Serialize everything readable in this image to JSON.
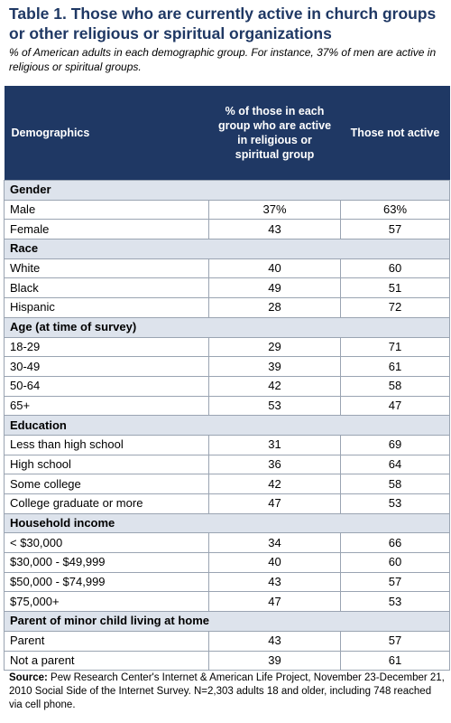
{
  "title": "Table 1. Those who are currently active in church groups or other religious or spiritual organizations",
  "subtitle": "% of American adults in each demographic group. For instance, 37% of men are active in religious or spiritual groups.",
  "chart_data": {
    "type": "table",
    "columns": [
      "Demographics",
      "% of those in each group who are active in religious or spiritual group",
      "Those not active"
    ],
    "sections": [
      {
        "name": "Gender",
        "rows": [
          {
            "label": "Male",
            "active": "37%",
            "not_active": "63%"
          },
          {
            "label": "Female",
            "active": "43",
            "not_active": "57"
          }
        ]
      },
      {
        "name": "Race",
        "rows": [
          {
            "label": "White",
            "active": "40",
            "not_active": "60"
          },
          {
            "label": "Black",
            "active": "49",
            "not_active": "51"
          },
          {
            "label": "Hispanic",
            "active": "28",
            "not_active": "72"
          }
        ]
      },
      {
        "name": "Age (at time of survey)",
        "rows": [
          {
            "label": "18-29",
            "active": "29",
            "not_active": "71"
          },
          {
            "label": "30-49",
            "active": "39",
            "not_active": "61"
          },
          {
            "label": "50-64",
            "active": "42",
            "not_active": "58"
          },
          {
            "label": "65+",
            "active": "53",
            "not_active": "47"
          }
        ]
      },
      {
        "name": "Education",
        "rows": [
          {
            "label": "Less than high school",
            "active": "31",
            "not_active": "69"
          },
          {
            "label": "High school",
            "active": "36",
            "not_active": "64"
          },
          {
            "label": "Some college",
            "active": "42",
            "not_active": "58"
          },
          {
            "label": "College graduate or more",
            "active": "47",
            "not_active": "53"
          }
        ]
      },
      {
        "name": "Household income",
        "rows": [
          {
            "label": "< $30,000",
            "active": "34",
            "not_active": "66"
          },
          {
            "label": "$30,000 - $49,999",
            "active": "40",
            "not_active": "60"
          },
          {
            "label": "$50,000 - $74,999",
            "active": "43",
            "not_active": "57"
          },
          {
            "label": "$75,000+",
            "active": "47",
            "not_active": "53"
          }
        ]
      },
      {
        "name": "Parent of minor child living at home",
        "rows": [
          {
            "label": "Parent",
            "active": "43",
            "not_active": "57"
          },
          {
            "label": "Not a parent",
            "active": "39",
            "not_active": "61"
          }
        ]
      }
    ]
  },
  "source": {
    "label": "Source:",
    "text": "Pew Research Center's Internet & American Life Project, November 23-December 21, 2010 Social Side of the Internet Survey. N=2,303 adults 18 and older, including 748 reached via cell phone."
  },
  "colors": {
    "header_bg": "#1f3864",
    "section_bg": "#dde3ec",
    "title": "#1f3864",
    "border": "#9aa4b2"
  }
}
